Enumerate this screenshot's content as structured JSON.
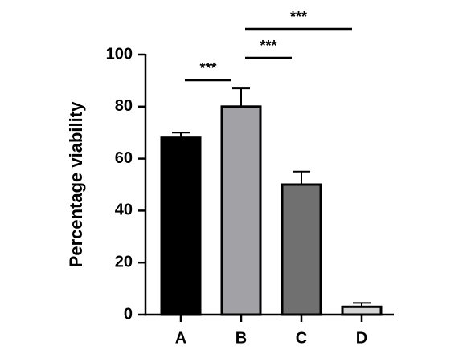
{
  "chart_data": {
    "type": "bar",
    "y_label": "Percentage viability",
    "categories": [
      "A",
      "B",
      "C",
      "D"
    ],
    "values": [
      68,
      80,
      50,
      3
    ],
    "errors": [
      2,
      7,
      5,
      1.5
    ],
    "colors": [
      "#000000",
      "#a2a2a6",
      "#707070",
      "#d4d4d4"
    ],
    "ylim": [
      0,
      100
    ],
    "yticks": [
      0,
      20,
      40,
      60,
      80,
      100
    ],
    "comparisons": [
      {
        "groups": [
          0,
          1
        ],
        "label": "***"
      },
      {
        "groups": [
          1,
          2
        ],
        "label": "***"
      },
      {
        "groups": [
          1,
          3
        ],
        "label": "***"
      }
    ]
  }
}
